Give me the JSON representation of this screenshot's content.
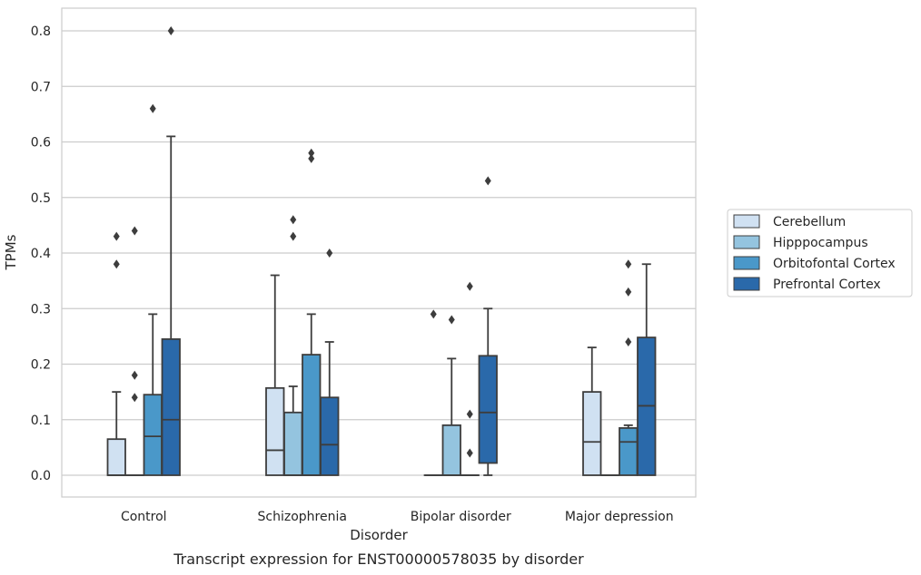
{
  "chart_data": {
    "type": "boxplot",
    "caption": "Transcript expression for ENST00000578035 by disorder",
    "xlabel": "Disorder",
    "ylabel": "TPMs",
    "ylim": [
      -0.04,
      0.84
    ],
    "yticks": [
      "0.0",
      "0.1",
      "0.2",
      "0.3",
      "0.4",
      "0.5",
      "0.6",
      "0.7",
      "0.8"
    ],
    "grid": true,
    "legend_position": "right",
    "categories": [
      "Control",
      "Schizophrenia",
      "Bipolar disorder",
      "Major depression"
    ],
    "series": [
      {
        "name": "Cerebellum",
        "color": "#d0e1f2",
        "boxes": [
          {
            "min": 0.0,
            "q1": 0.0,
            "median": 0.0,
            "q3": 0.065,
            "max": 0.15,
            "outliers": [
              0.38,
              0.43
            ]
          },
          {
            "min": 0.0,
            "q1": 0.0,
            "median": 0.045,
            "q3": 0.157,
            "max": 0.36,
            "outliers": []
          },
          {
            "min": 0.0,
            "q1": 0.0,
            "median": 0.0,
            "q3": 0.0,
            "max": 0.0,
            "outliers": [
              0.29
            ]
          },
          {
            "min": 0.0,
            "q1": 0.0,
            "median": 0.06,
            "q3": 0.15,
            "max": 0.23,
            "outliers": []
          }
        ]
      },
      {
        "name": "Hipppocampus",
        "color": "#94c4df",
        "boxes": [
          {
            "min": 0.0,
            "q1": 0.0,
            "median": 0.0,
            "q3": 0.0,
            "max": 0.0,
            "outliers": [
              0.14,
              0.18,
              0.44
            ]
          },
          {
            "min": 0.0,
            "q1": 0.0,
            "median": 0.0,
            "q3": 0.113,
            "max": 0.16,
            "outliers": [
              0.43,
              0.46
            ]
          },
          {
            "min": 0.0,
            "q1": 0.0,
            "median": 0.0,
            "q3": 0.09,
            "max": 0.21,
            "outliers": [
              0.28
            ]
          },
          {
            "min": 0.0,
            "q1": 0.0,
            "median": 0.0,
            "q3": 0.0,
            "max": 0.0,
            "outliers": []
          }
        ]
      },
      {
        "name": "Orbitofontal Cortex",
        "color": "#4a98c9",
        "boxes": [
          {
            "min": 0.0,
            "q1": 0.0,
            "median": 0.07,
            "q3": 0.145,
            "max": 0.29,
            "outliers": [
              0.66
            ]
          },
          {
            "min": 0.0,
            "q1": 0.0,
            "median": 0.0,
            "q3": 0.217,
            "max": 0.29,
            "outliers": [
              0.57,
              0.58
            ]
          },
          {
            "min": 0.0,
            "q1": 0.0,
            "median": 0.0,
            "q3": 0.0,
            "max": 0.0,
            "outliers": [
              0.04,
              0.11,
              0.34
            ]
          },
          {
            "min": 0.0,
            "q1": 0.0,
            "median": 0.06,
            "q3": 0.085,
            "max": 0.09,
            "outliers": [
              0.24,
              0.33,
              0.38
            ]
          }
        ]
      },
      {
        "name": "Prefrontal Cortex",
        "color": "#2a69aa",
        "boxes": [
          {
            "min": 0.0,
            "q1": 0.0,
            "median": 0.1,
            "q3": 0.245,
            "max": 0.61,
            "outliers": [
              0.8
            ]
          },
          {
            "min": 0.0,
            "q1": 0.0,
            "median": 0.055,
            "q3": 0.14,
            "max": 0.24,
            "outliers": [
              0.4
            ]
          },
          {
            "min": 0.0,
            "q1": 0.022,
            "median": 0.113,
            "q3": 0.215,
            "max": 0.3,
            "outliers": [
              0.53
            ]
          },
          {
            "min": 0.0,
            "q1": 0.0,
            "median": 0.125,
            "q3": 0.248,
            "max": 0.38,
            "outliers": []
          }
        ]
      }
    ]
  }
}
